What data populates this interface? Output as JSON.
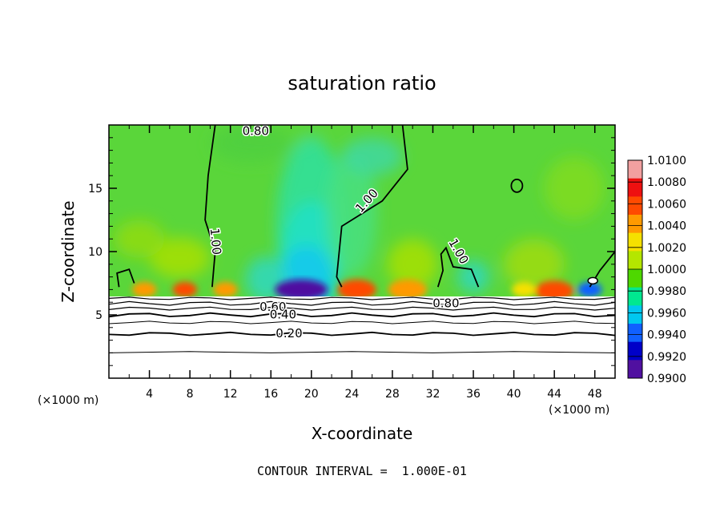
{
  "chart_data": {
    "type": "heatmap",
    "title": "saturation ratio",
    "xlabel": "X-coordinate",
    "ylabel": "Z-coordinate",
    "x_unit": "(×1000 m)",
    "xlim": [
      0,
      50
    ],
    "ylim": [
      0,
      20
    ],
    "x_ticks": [
      "4",
      "8",
      "12",
      "16",
      "20",
      "24",
      "28",
      "32",
      "36",
      "40",
      "44",
      "48"
    ],
    "y_ticks": [
      "5",
      "10",
      "15"
    ],
    "colorbar": {
      "labels": [
        "1.0100",
        "1.0080",
        "1.0060",
        "1.0040",
        "1.0020",
        "1.0000",
        "0.9980",
        "0.9960",
        "0.9940",
        "0.9920",
        "0.9900"
      ],
      "colors": [
        "#f2a0a0",
        "#ee1010",
        "#ff4a00",
        "#ff9a00",
        "#f5e000",
        "#b4e600",
        "#4ed800",
        "#00e890",
        "#00c8f0",
        "#1060ff",
        "#0000c8",
        "#5010a0"
      ]
    },
    "contour_labels": [
      {
        "text": "1.00",
        "x": 10.5,
        "z": 10.8,
        "angle": 85
      },
      {
        "text": "1.00",
        "x": 25.5,
        "z": 14.0,
        "angle": -48
      },
      {
        "text": "1.00",
        "x": 34.5,
        "z": 10.0,
        "angle": 60
      },
      {
        "text": "0.60",
        "x": 16.2,
        "z": 5.6,
        "angle": 0
      },
      {
        "text": "0.40",
        "x": 17.2,
        "z": 5.0,
        "angle": 0
      },
      {
        "text": "0.20",
        "x": 17.8,
        "z": 3.5,
        "angle": 0
      },
      {
        "text": "0.80",
        "x": 33.3,
        "z": 5.9,
        "angle": 0
      },
      {
        "text": "0.80",
        "x": 14.5,
        "z": 19.5,
        "angle": 0
      }
    ],
    "field_description_points": [
      {
        "x": 19,
        "z": 7.0,
        "value": 0.9915
      },
      {
        "x": 24.5,
        "z": 7.0,
        "value": 1.0065
      },
      {
        "x": 29.5,
        "z": 7.0,
        "value": 1.004
      },
      {
        "x": 44,
        "z": 6.9,
        "value": 1.006
      },
      {
        "x": 20,
        "z": 10,
        "value": 0.9965
      },
      {
        "x": 30,
        "z": 15,
        "value": 1.0005
      }
    ]
  },
  "annotation": "CONTOUR INTERVAL =  1.000E-01"
}
